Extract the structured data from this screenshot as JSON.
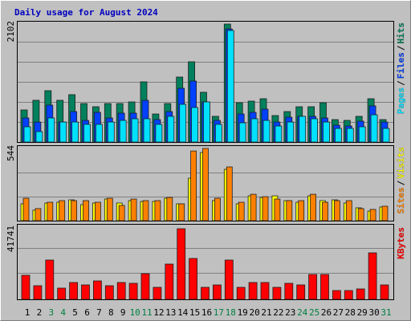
{
  "title": "Daily usage for August 2024",
  "separator": "/",
  "chart_data": [
    {
      "type": "bar",
      "categories": [
        "1",
        "2",
        "3",
        "4",
        "5",
        "6",
        "7",
        "8",
        "9",
        "10",
        "11",
        "12",
        "13",
        "14",
        "15",
        "16",
        "17",
        "18",
        "19",
        "20",
        "21",
        "22",
        "23",
        "24",
        "25",
        "26",
        "27",
        "28",
        "29",
        "30",
        "31"
      ],
      "category_colors": [
        "#000000",
        "#000000",
        "#008040",
        "#008040",
        "#000000",
        "#000000",
        "#000000",
        "#000000",
        "#000000",
        "#008040",
        "#008040",
        "#000000",
        "#000000",
        "#000000",
        "#000000",
        "#000000",
        "#008040",
        "#008040",
        "#000000",
        "#000000",
        "#000000",
        "#000000",
        "#000000",
        "#008040",
        "#008040",
        "#000000",
        "#000000",
        "#000000",
        "#000000",
        "#000000",
        "#008040"
      ],
      "ylim": [
        0,
        2102
      ],
      "yticks": [
        2102
      ],
      "series": [
        {
          "name": "Hits",
          "color": "#00805c",
          "values": [
            572,
            744,
            915,
            744,
            844,
            686,
            629,
            686,
            686,
            715,
            1073,
            500,
            686,
            1158,
            1430,
            887,
            458,
            2102,
            701,
            729,
            772,
            472,
            543,
            629,
            629,
            701,
            400,
            386,
            458,
            772,
            400
          ]
        },
        {
          "name": "Files",
          "color": "#0040ff",
          "values": [
            429,
            357,
            658,
            357,
            543,
            386,
            529,
            429,
            515,
            515,
            744,
            400,
            543,
            958,
            1087,
            715,
            386,
            2016,
            500,
            529,
            586,
            357,
            443,
            458,
            458,
            429,
            300,
            286,
            372,
            644,
            357
          ]
        },
        {
          "name": "Pages",
          "color": "#00e0ff",
          "values": [
            272,
            186,
            429,
            357,
            357,
            315,
            315,
            357,
            386,
            415,
            415,
            315,
            458,
            672,
            615,
            715,
            315,
            1988,
            343,
            415,
            386,
            286,
            357,
            458,
            415,
            357,
            243,
            243,
            272,
            486,
            243
          ]
        }
      ]
    },
    {
      "type": "bar",
      "ylim": [
        0,
        544
      ],
      "yticks": [
        544
      ],
      "series": [
        {
          "name": "Visits",
          "color": "#ffff00",
          "values": [
            127,
            79,
            133,
            139,
            157,
            121,
            133,
            163,
            133,
            151,
            145,
            145,
            169,
            127,
            320,
            513,
            151,
            387,
            127,
            187,
            175,
            187,
            151,
            139,
            187,
            151,
            157,
            133,
            97,
            72,
            103
          ]
        },
        {
          "name": "Sites",
          "color": "#ff8000",
          "values": [
            169,
            91,
            139,
            151,
            151,
            151,
            139,
            169,
            115,
            163,
            151,
            151,
            175,
            127,
            525,
            544,
            169,
            405,
            139,
            199,
            181,
            163,
            151,
            151,
            199,
            139,
            151,
            151,
            91,
            85,
            109
          ]
        }
      ]
    },
    {
      "type": "bar",
      "ylim": [
        0,
        41741
      ],
      "yticks": [
        41741
      ],
      "series": [
        {
          "name": "KBytes",
          "color": "#ff0000",
          "values": [
            14220,
            8060,
            23230,
            6640,
            9960,
            8530,
            10900,
            8060,
            9960,
            9480,
            15170,
            7110,
            20860,
            41741,
            24170,
            7110,
            8530,
            23230,
            7110,
            9960,
            9960,
            7110,
            9480,
            8530,
            14700,
            14700,
            5210,
            5210,
            6160,
            27490,
            8530
          ]
        }
      ]
    }
  ]
}
